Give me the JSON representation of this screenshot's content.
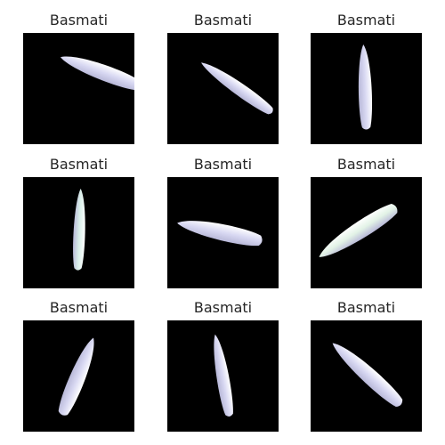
{
  "figure": {
    "panels": [
      {
        "title": "Basmati",
        "grain_color": "#d8d8f2"
      },
      {
        "title": "Basmati",
        "grain_color": "#d8d8f2"
      },
      {
        "title": "Basmati",
        "grain_color": "#d8d8f2"
      },
      {
        "title": "Basmati",
        "grain_color": "#daf0ea"
      },
      {
        "title": "Basmati",
        "grain_color": "#d8d8f2"
      },
      {
        "title": "Basmati",
        "grain_color": "#e2f2e6"
      },
      {
        "title": "Basmati",
        "grain_color": "#d8d8f2"
      },
      {
        "title": "Basmati",
        "grain_color": "#d8d8f2"
      },
      {
        "title": "Basmati",
        "grain_color": "#d8d8f2"
      }
    ]
  }
}
